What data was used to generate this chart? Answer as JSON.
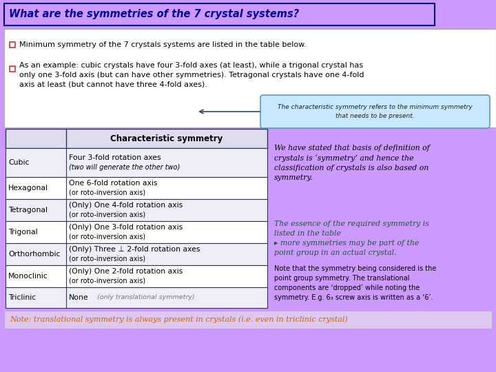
{
  "title": "What are the symmetries of the 7 crystal systems?",
  "bg_color": "#CC99FF",
  "title_border": "#000080",
  "bullet1": "Minimum symmetry of the 7 crystals systems are listed in the table below.",
  "bullet2": "As an example: cubic crystals have four 3-fold axes (at least), while a trigonal crystal has\nonly one 3-fold axis (but can have other symmetries). Tetragonal crystals have one 4-fold\naxis at least (but cannot have three 4-fold axes).",
  "callout_text": "The characteristic symmetry refers to the minimum symmetry\nthat needs to be present.",
  "table_header": "Characteristic symmetry",
  "table_rows": [
    [
      "Cubic",
      "Four 3-fold rotation axes",
      "(two will generate the other two)",
      true
    ],
    [
      "Hexagonal",
      "One 6-fold rotation axis",
      "(or roto-inversion axis)",
      false
    ],
    [
      "Tetragonal",
      "(Only) One 4-fold rotation axis",
      "(or roto-inversion axis)",
      false
    ],
    [
      "Trigonal",
      "(Only) One 3-fold rotation axis",
      "(or roto-inversion axis)",
      false
    ],
    [
      "Orthorhombic",
      "(Only) Three ⊥ 2-fold rotation axes",
      "(or roto-inversion axis)",
      false
    ],
    [
      "Monoclinic",
      "(Only) One 2-fold rotation axis",
      "(or roto-inversion axis)",
      false
    ],
    [
      "Triclinic",
      "None",
      "(only translational symmetry)",
      false
    ]
  ],
  "right_text1": "We have stated that basis of definition of\ncrystals is ‘symmetry’ and hence the\nclassification of crystals is also based on\nsymmetry.",
  "right_text2": "The essence of the required symmetry is\nlisted in the table\n▸ more symmetries may be part of the\npoint group in an actual crystal.",
  "right_text3": "Note that the symmetry being considered is the\npoint group symmetry. The translational\ncomponents are ‘dropped’ while noting the\nsymmetry. E.g. 6₃ screw axis is written as a ‘6’.",
  "note_text": "Note: translational symmetry is always present in crystals (i.e. even in triclinic crystal)",
  "table_border": "#333355",
  "callout_bg": "#C8E8FF",
  "callout_border": "#5599CC",
  "note_bg": "#DEC8F0",
  "note_border": "#BBAACC"
}
